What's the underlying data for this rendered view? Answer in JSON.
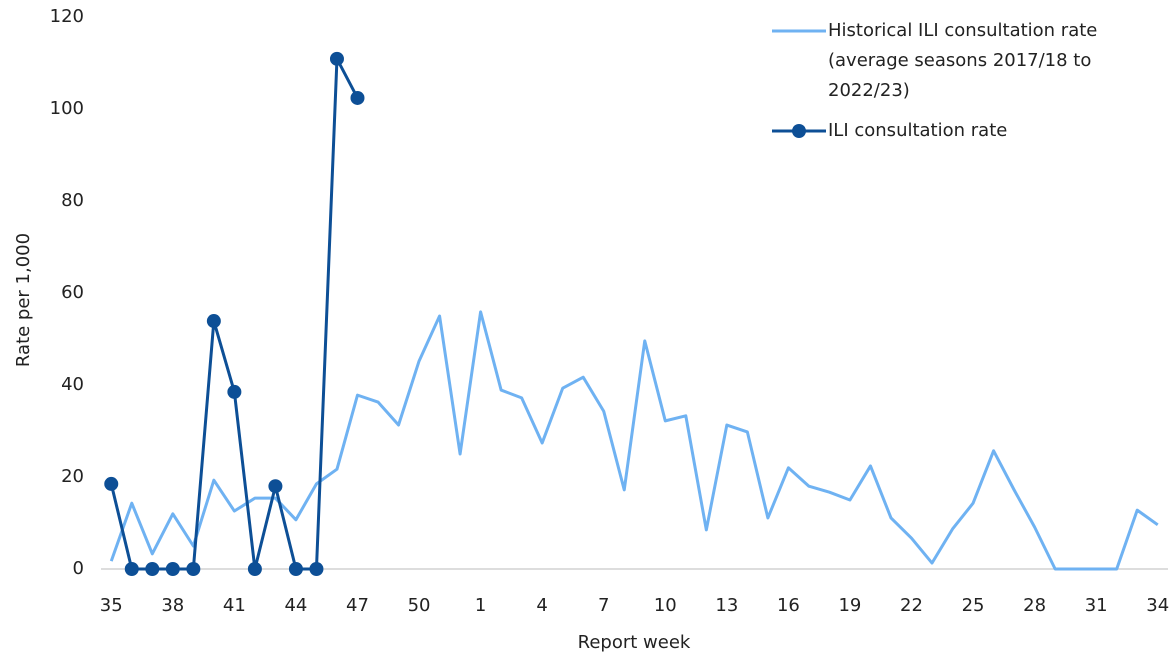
{
  "chart_data": {
    "type": "line",
    "y_label": "Rate per 1,000",
    "x_label": "Report week",
    "categories": [
      35,
      null,
      null,
      38,
      null,
      null,
      41,
      null,
      null,
      44,
      null,
      null,
      47,
      null,
      null,
      50,
      null,
      null,
      1,
      null,
      null,
      4,
      null,
      null,
      7,
      null,
      null,
      10,
      null,
      null,
      13,
      null,
      null,
      16,
      null,
      null,
      19,
      null,
      null,
      22,
      null,
      null,
      25,
      null,
      null,
      28,
      null,
      null,
      31,
      null,
      null,
      34
    ],
    "series": [
      {
        "name": "Historical ILI consultation rate (average seasons 2017/18 to 2022/23)",
        "color": "#6fb2f2",
        "marker": false,
        "values": [
          1.7,
          14.3,
          3.3,
          12,
          5,
          19.3,
          12.6,
          15.4,
          15.4,
          10.7,
          18.5,
          21.7,
          37.8,
          36.3,
          31.3,
          45.2,
          55,
          25,
          55.9,
          38.9,
          37.2,
          27.4,
          39.3,
          41.7,
          34.3,
          17.2,
          49.6,
          32.2,
          33.3,
          8.5,
          31.3,
          29.8,
          11.1,
          22,
          18,
          16.7,
          15,
          22.4,
          11.1,
          6.7,
          1.3,
          8.7,
          14.3,
          25.7,
          17.2,
          9.1,
          0,
          0,
          0,
          0,
          12.8,
          9.6
        ]
      },
      {
        "name": "ILI consultation rate",
        "color": "#0d4f96",
        "marker": true,
        "values": [
          18.5,
          0,
          0,
          0,
          0,
          53.9,
          38.5,
          0,
          18,
          0,
          0,
          110.9,
          102.4,
          null,
          null,
          null,
          null,
          null,
          null,
          null,
          null,
          null,
          null,
          null,
          null,
          null,
          null,
          null,
          null,
          null,
          null,
          null,
          null,
          null,
          null,
          null,
          null,
          null,
          null,
          null,
          null,
          null,
          null,
          null,
          null,
          null,
          null,
          null,
          null,
          null,
          null,
          null
        ]
      }
    ],
    "ylim": [
      0,
      120
    ],
    "yticks": [
      0,
      20,
      40,
      60,
      80,
      100,
      120
    ],
    "grid": false
  }
}
